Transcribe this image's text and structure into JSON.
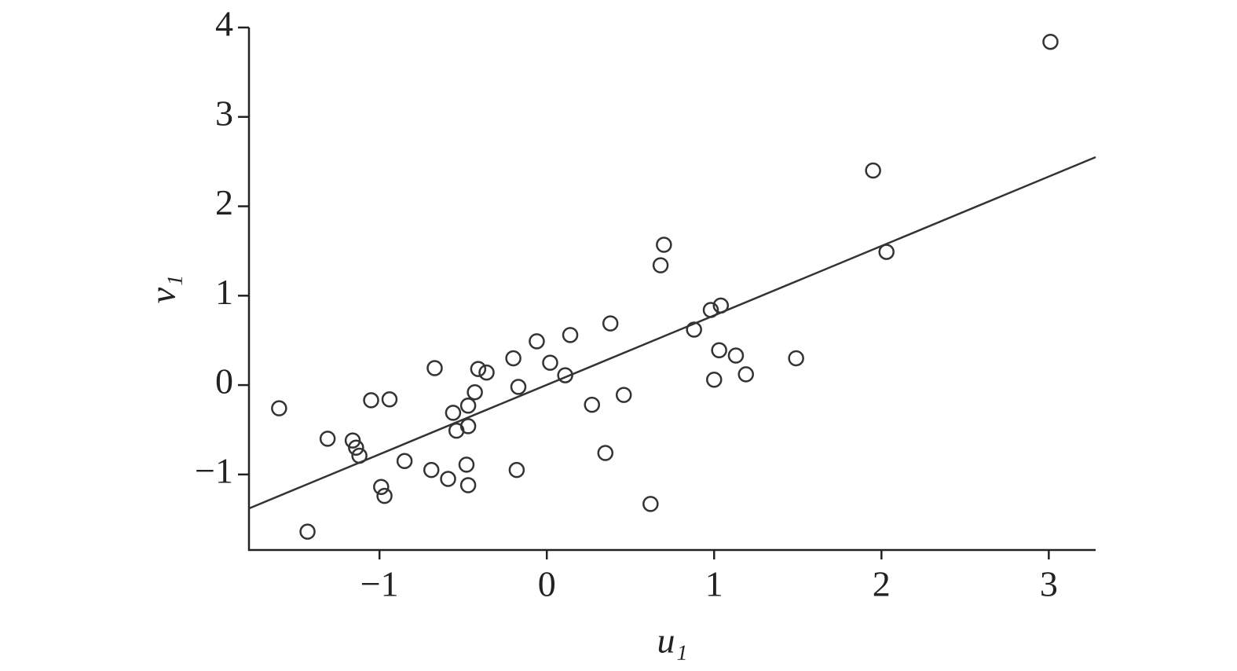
{
  "chart_data": {
    "type": "scatter",
    "x_label": "u₁",
    "y_label": "v₁",
    "x": [
      -1.6,
      -1.31,
      -1.16,
      -1.14,
      -1.12,
      -1.05,
      -0.94,
      -0.99,
      -0.97,
      -1.43,
      -0.85,
      -0.69,
      -0.67,
      -0.59,
      -0.56,
      -0.54,
      -0.48,
      -0.47,
      -0.47,
      -0.47,
      -0.43,
      -0.41,
      -0.36,
      -0.2,
      -0.17,
      -0.18,
      -0.06,
      0.02,
      0.11,
      0.14,
      0.27,
      0.35,
      0.38,
      0.46,
      0.62,
      0.68,
      0.7,
      0.88,
      0.98,
      1.04,
      1.0,
      1.03,
      1.13,
      1.19,
      1.49,
      1.95,
      2.03,
      3.01
    ],
    "y": [
      -0.26,
      -0.6,
      -0.62,
      -0.7,
      -0.79,
      -0.17,
      -0.16,
      -1.14,
      -1.24,
      -1.64,
      -0.85,
      -0.95,
      0.19,
      -1.05,
      -0.31,
      -0.51,
      -0.89,
      -1.12,
      -0.23,
      -0.46,
      -0.08,
      0.18,
      0.14,
      0.3,
      -0.02,
      -0.95,
      0.49,
      0.25,
      0.11,
      0.56,
      -0.22,
      -0.76,
      0.69,
      -0.11,
      -1.33,
      1.34,
      1.57,
      0.62,
      0.84,
      0.89,
      0.06,
      0.39,
      0.33,
      0.12,
      0.3,
      2.4,
      1.49,
      3.84
    ],
    "color": "#333333",
    "fit": {
      "x": [
        -1.78,
        3.28
      ],
      "y": [
        -1.38,
        2.55
      ]
    },
    "xlim": [
      -1.78,
      3.28
    ],
    "ylim": [
      -1.845,
      4
    ],
    "xticks": [
      {
        "value": -1,
        "label": "−1"
      },
      0,
      1,
      2,
      3
    ],
    "yticks": [
      {
        "value": -1,
        "label": "−1"
      },
      0,
      1,
      2,
      3,
      4
    ],
    "grid": false
  }
}
